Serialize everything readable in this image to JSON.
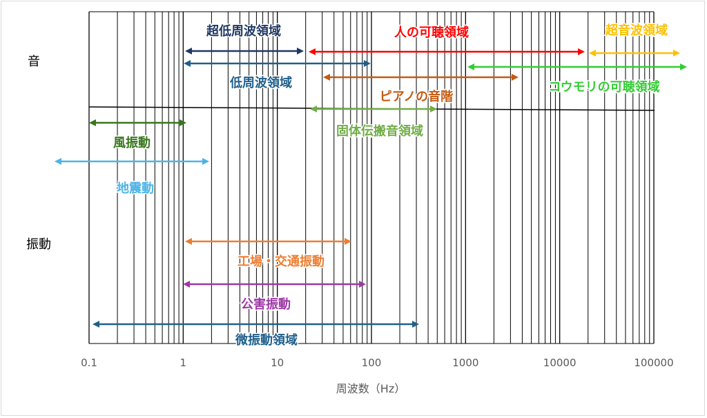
{
  "chart_data": {
    "type": "range",
    "x_scale": "log",
    "xlim": [
      0.1,
      100000
    ],
    "xlabel": "周波数（Hz）",
    "x_ticks": [
      0.1,
      1,
      10,
      100,
      1000,
      10000,
      100000
    ],
    "x_tick_labels": [
      "0.1",
      "1",
      "10",
      "100",
      "1000",
      "10000",
      "100000"
    ],
    "grid": "vertical, logarithmic minor gridlines",
    "row_labels": [
      {
        "text": "音",
        "group": "sound"
      },
      {
        "text": "振動",
        "group": "vibration"
      }
    ],
    "ranges": [
      {
        "name": "超低周波領域",
        "group": "sound",
        "start": 1,
        "end": 20,
        "color": "#1f3864"
      },
      {
        "name": "人の可聴領域",
        "group": "sound",
        "start": 20,
        "end": 20000,
        "color": "#ff0000"
      },
      {
        "name": "超音波領域",
        "group": "sound",
        "start": 20000,
        "end": 200000,
        "color": "#ffc000"
      },
      {
        "name": "低周波領域",
        "group": "sound",
        "start": 1,
        "end": 100,
        "color": "#1f5f8b"
      },
      {
        "name": "コウモリの可聴領域",
        "group": "sound",
        "start": 1000,
        "end": 200000,
        "color": "#33cc33"
      },
      {
        "name": "ピアノの音階",
        "group": "sound",
        "start": 27.5,
        "end": 4186,
        "color": "#c55a11"
      },
      {
        "name": "固体伝搬音領域",
        "group": "sound",
        "start": 20,
        "end": 500,
        "color": "#70ad47"
      },
      {
        "name": "風振動",
        "group": "vibration",
        "start": 0.1,
        "end": 1,
        "color": "#38761d"
      },
      {
        "name": "地震動",
        "group": "vibration",
        "start": 0.02,
        "end": 2,
        "color": "#4db3e6"
      },
      {
        "name": "工場・交通振動",
        "group": "vibration",
        "start": 1,
        "end": 63,
        "color": "#ed7d31"
      },
      {
        "name": "公害振動",
        "group": "vibration",
        "start": 1,
        "end": 90,
        "color": "#9e37a8"
      },
      {
        "name": "微振動領域",
        "group": "vibration",
        "start": 0.1,
        "end": 300,
        "color": "#1f5f8b"
      }
    ]
  }
}
